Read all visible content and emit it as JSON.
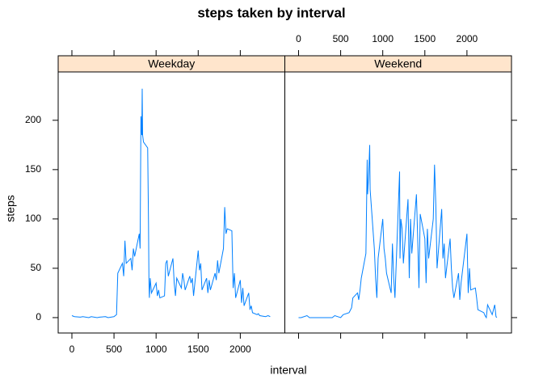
{
  "chart_data": {
    "type": "line",
    "title": "steps taken by interval",
    "xlabel": "interval",
    "ylabel": "steps",
    "color": "#0080ff",
    "xlim": [
      -163,
      2529
    ],
    "ylim": [
      -15.6,
      249
    ],
    "xticks": [
      0,
      500,
      1000,
      1500,
      2000
    ],
    "yticks": [
      0,
      50,
      100,
      150,
      200
    ],
    "panels": [
      {
        "name": "Weekday",
        "x": [
          0,
          30,
          100,
          130,
          200,
          230,
          300,
          330,
          400,
          430,
          500,
          530,
          545,
          600,
          615,
          630,
          645,
          700,
          715,
          730,
          745,
          800,
          810,
          820,
          830,
          835,
          840,
          850,
          900,
          910,
          915,
          920,
          930,
          945,
          1000,
          1015,
          1030,
          1045,
          1100,
          1115,
          1130,
          1145,
          1200,
          1215,
          1230,
          1245,
          1300,
          1315,
          1330,
          1345,
          1400,
          1415,
          1430,
          1445,
          1500,
          1515,
          1530,
          1545,
          1600,
          1615,
          1630,
          1645,
          1700,
          1715,
          1730,
          1745,
          1800,
          1815,
          1830,
          1845,
          1900,
          1915,
          1930,
          1945,
          2000,
          2015,
          2030,
          2045,
          2100,
          2115,
          2130,
          2145,
          2200,
          2215,
          2230,
          2300,
          2330,
          2355
        ],
        "values": [
          2,
          1,
          0.5,
          1,
          0,
          1,
          0,
          0.5,
          1,
          0,
          1,
          3,
          45,
          55,
          42,
          78,
          55,
          60,
          48,
          70,
          62,
          85,
          70,
          204,
          185,
          232,
          185,
          178,
          172,
          95,
          38,
          20,
          40,
          25,
          35,
          22,
          28,
          20,
          22,
          55,
          58,
          42,
          60,
          35,
          22,
          40,
          30,
          45,
          38,
          28,
          42,
          35,
          40,
          22,
          68,
          48,
          55,
          28,
          40,
          25,
          38,
          28,
          45,
          38,
          58,
          45,
          70,
          112,
          85,
          90,
          88,
          30,
          45,
          20,
          38,
          15,
          30,
          12,
          25,
          8,
          12,
          5,
          3,
          4,
          2,
          1,
          2,
          1
        ]
      },
      {
        "name": "Weekend",
        "x": [
          0,
          30,
          100,
          130,
          200,
          300,
          400,
          430,
          500,
          530,
          600,
          630,
          645,
          700,
          715,
          730,
          745,
          800,
          805,
          815,
          820,
          830,
          835,
          845,
          850,
          900,
          915,
          930,
          945,
          1000,
          1015,
          1030,
          1045,
          1100,
          1115,
          1130,
          1145,
          1200,
          1205,
          1215,
          1230,
          1245,
          1300,
          1315,
          1330,
          1345,
          1400,
          1415,
          1430,
          1445,
          1500,
          1515,
          1530,
          1545,
          1600,
          1615,
          1630,
          1645,
          1700,
          1715,
          1730,
          1745,
          1800,
          1815,
          1830,
          1845,
          1900,
          1915,
          1930,
          2000,
          2015,
          2030,
          2045,
          2100,
          2115,
          2130,
          2200,
          2215,
          2230,
          2245,
          2300,
          2330,
          2345,
          2355
        ],
        "values": [
          0,
          0,
          2,
          0,
          0,
          0,
          0,
          2,
          0,
          3,
          5,
          10,
          20,
          25,
          18,
          28,
          40,
          65,
          95,
          160,
          125,
          140,
          150,
          175,
          130,
          70,
          40,
          20,
          60,
          100,
          70,
          60,
          45,
          25,
          75,
          40,
          20,
          148,
          60,
          100,
          90,
          55,
          120,
          40,
          100,
          65,
          125,
          80,
          30,
          105,
          80,
          35,
          90,
          60,
          100,
          155,
          115,
          50,
          110,
          60,
          75,
          40,
          80,
          50,
          30,
          20,
          45,
          18,
          35,
          85,
          25,
          50,
          28,
          30,
          20,
          8,
          5,
          2,
          0,
          13,
          3,
          13,
          1,
          0
        ]
      }
    ]
  }
}
